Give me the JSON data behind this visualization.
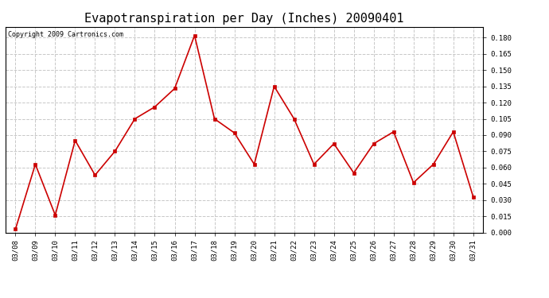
{
  "title": "Evapotranspiration per Day (Inches) 20090401",
  "copyright_text": "Copyright 2009 Cartronics.com",
  "dates": [
    "03/08",
    "03/09",
    "03/10",
    "03/11",
    "03/12",
    "03/13",
    "03/14",
    "03/15",
    "03/16",
    "03/17",
    "03/18",
    "03/19",
    "03/20",
    "03/21",
    "03/22",
    "03/23",
    "03/24",
    "03/25",
    "03/26",
    "03/27",
    "03/28",
    "03/29",
    "03/30",
    "03/31"
  ],
  "values": [
    0.003,
    0.063,
    0.016,
    0.085,
    0.053,
    0.075,
    0.105,
    0.116,
    0.133,
    0.182,
    0.105,
    0.092,
    0.063,
    0.135,
    0.105,
    0.063,
    0.082,
    0.055,
    0.082,
    0.093,
    0.046,
    0.063,
    0.093,
    0.033
  ],
  "line_color": "#cc0000",
  "marker": "s",
  "marker_size": 3,
  "ylim": [
    0.0,
    0.19
  ],
  "yticks": [
    0.0,
    0.015,
    0.03,
    0.045,
    0.06,
    0.075,
    0.09,
    0.105,
    0.12,
    0.135,
    0.15,
    0.165,
    0.18
  ],
  "grid_color": "#c8c8c8",
  "grid_linestyle": "--",
  "background_color": "#ffffff",
  "title_fontsize": 11,
  "copyright_fontsize": 6,
  "tick_fontsize": 6.5,
  "linewidth": 1.2
}
